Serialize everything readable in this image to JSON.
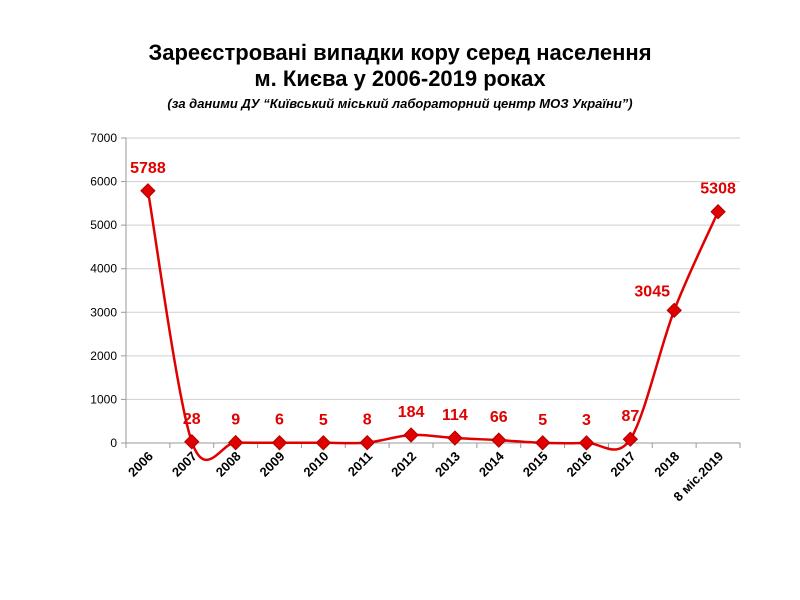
{
  "chart_data": {
    "type": "line",
    "title_lines": [
      "Зареєстровані випадки кору серед населення",
      "м. Києва у 2006-2019 роках"
    ],
    "subtitle": "(за даними ДУ “Київський міський лабораторний центр МОЗ України”)",
    "categories": [
      "2006",
      "2007",
      "2008",
      "2009",
      "2010",
      "2011",
      "2012",
      "2013",
      "2014",
      "2015",
      "2016",
      "2017",
      "2018",
      "8 міс.2019"
    ],
    "series": [
      {
        "values": [
          5788,
          28,
          9,
          6,
          5,
          8,
          184,
          114,
          66,
          5,
          3,
          87,
          3045,
          5308
        ],
        "data_labels": [
          "5788",
          "28",
          "9",
          "6",
          "5",
          "8",
          "184",
          "114",
          "66",
          "5",
          "3",
          "87",
          "3045",
          "5308"
        ]
      }
    ],
    "ylim": [
      0,
      7000
    ],
    "yticks": [
      0,
      1000,
      2000,
      3000,
      4000,
      5000,
      6000,
      7000
    ],
    "ytick_labels": [
      "0",
      "1000",
      "2000",
      "3000",
      "4000",
      "5000",
      "6000",
      "7000"
    ],
    "grid": true,
    "legend": "none",
    "colors": {
      "series": "#e00000",
      "grid": "#cfcfcf",
      "axis": "#999999"
    }
  }
}
